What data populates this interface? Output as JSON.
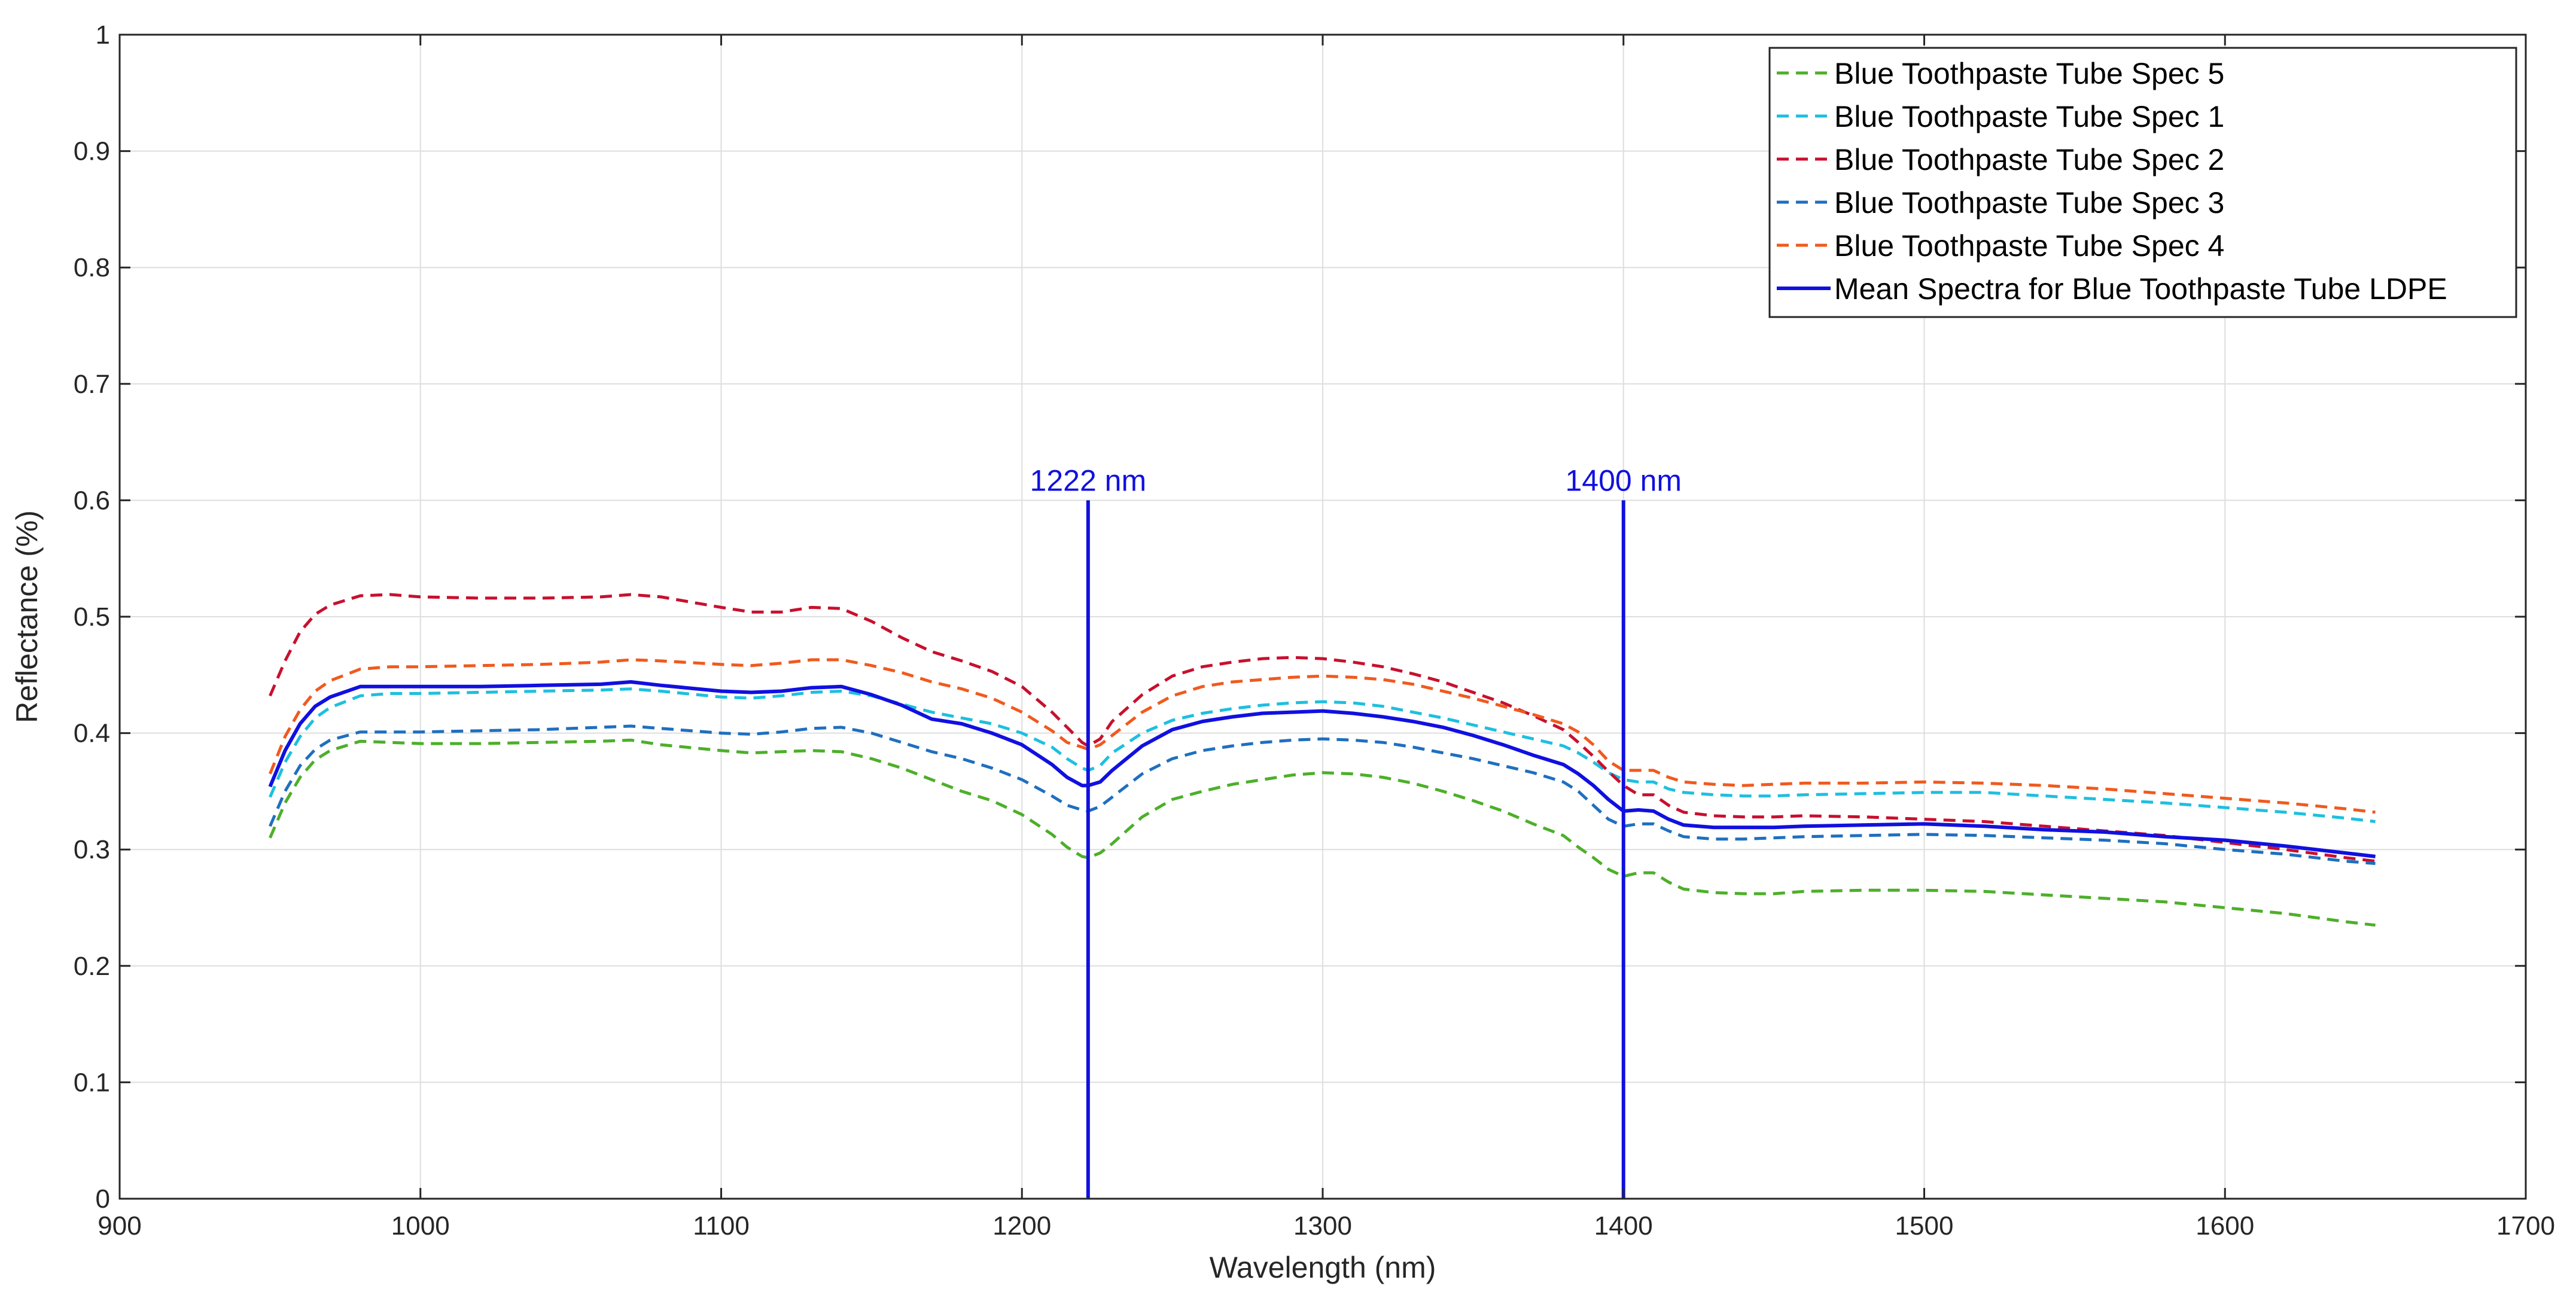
{
  "chart_data": {
    "type": "line",
    "title": "",
    "xlabel": "Wavelength (nm)",
    "ylabel": "Reflectance (%)",
    "xlim": [
      900,
      1700
    ],
    "ylim": [
      0,
      1
    ],
    "grid": true,
    "legend_position": "top-right",
    "x_ticks": [
      "900",
      "1000",
      "1100",
      "1200",
      "1300",
      "1400",
      "1500",
      "1600",
      "1700"
    ],
    "y_ticks": [
      "0",
      "0.1",
      "0.2",
      "0.3",
      "0.4",
      "0.5",
      "0.6",
      "0.7",
      "0.8",
      "0.9",
      "1"
    ],
    "x": [
      950,
      955,
      960,
      965,
      970,
      980,
      990,
      1000,
      1020,
      1040,
      1060,
      1070,
      1080,
      1100,
      1110,
      1120,
      1130,
      1140,
      1150,
      1160,
      1170,
      1180,
      1190,
      1200,
      1210,
      1215,
      1220,
      1222,
      1226,
      1230,
      1240,
      1250,
      1260,
      1270,
      1280,
      1290,
      1300,
      1310,
      1320,
      1330,
      1340,
      1350,
      1360,
      1370,
      1380,
      1385,
      1390,
      1395,
      1400,
      1405,
      1410,
      1415,
      1420,
      1430,
      1440,
      1450,
      1460,
      1480,
      1500,
      1520,
      1540,
      1560,
      1580,
      1600,
      1620,
      1640,
      1650
    ],
    "series": [
      {
        "name": "Blue Toothpaste Tube Spec 5",
        "color": "#4daf2a",
        "dash": "dashed",
        "values": [
          0.31,
          0.34,
          0.362,
          0.377,
          0.385,
          0.393,
          0.392,
          0.391,
          0.391,
          0.392,
          0.393,
          0.394,
          0.39,
          0.385,
          0.383,
          0.384,
          0.385,
          0.384,
          0.378,
          0.37,
          0.36,
          0.35,
          0.342,
          0.33,
          0.313,
          0.302,
          0.294,
          0.293,
          0.297,
          0.305,
          0.328,
          0.343,
          0.35,
          0.356,
          0.36,
          0.364,
          0.366,
          0.365,
          0.362,
          0.357,
          0.35,
          0.342,
          0.333,
          0.322,
          0.312,
          0.302,
          0.293,
          0.283,
          0.277,
          0.28,
          0.28,
          0.272,
          0.266,
          0.263,
          0.262,
          0.262,
          0.264,
          0.265,
          0.265,
          0.264,
          0.261,
          0.258,
          0.255,
          0.25,
          0.245,
          0.238,
          0.235
        ]
      },
      {
        "name": "Blue Toothpaste Tube Spec 1",
        "color": "#1ebfdf",
        "dash": "dashed",
        "values": [
          0.345,
          0.375,
          0.397,
          0.413,
          0.422,
          0.432,
          0.434,
          0.434,
          0.435,
          0.436,
          0.437,
          0.438,
          0.436,
          0.431,
          0.43,
          0.432,
          0.435,
          0.436,
          0.432,
          0.425,
          0.418,
          0.413,
          0.408,
          0.4,
          0.388,
          0.378,
          0.37,
          0.368,
          0.372,
          0.383,
          0.4,
          0.411,
          0.417,
          0.421,
          0.424,
          0.426,
          0.427,
          0.426,
          0.423,
          0.418,
          0.413,
          0.407,
          0.401,
          0.395,
          0.389,
          0.383,
          0.375,
          0.366,
          0.36,
          0.358,
          0.358,
          0.352,
          0.349,
          0.347,
          0.346,
          0.346,
          0.347,
          0.348,
          0.349,
          0.349,
          0.346,
          0.343,
          0.34,
          0.336,
          0.332,
          0.327,
          0.324
        ]
      },
      {
        "name": "Blue Toothpaste Tube Spec 2",
        "color": "#c8102e",
        "dash": "dashed",
        "values": [
          0.432,
          0.462,
          0.487,
          0.502,
          0.51,
          0.518,
          0.519,
          0.517,
          0.516,
          0.516,
          0.517,
          0.519,
          0.517,
          0.508,
          0.504,
          0.504,
          0.508,
          0.507,
          0.496,
          0.482,
          0.47,
          0.462,
          0.453,
          0.44,
          0.418,
          0.405,
          0.392,
          0.389,
          0.395,
          0.41,
          0.433,
          0.449,
          0.457,
          0.461,
          0.464,
          0.465,
          0.464,
          0.461,
          0.457,
          0.451,
          0.444,
          0.435,
          0.426,
          0.415,
          0.403,
          0.392,
          0.38,
          0.367,
          0.355,
          0.347,
          0.347,
          0.338,
          0.332,
          0.329,
          0.328,
          0.328,
          0.329,
          0.328,
          0.326,
          0.324,
          0.32,
          0.316,
          0.312,
          0.306,
          0.3,
          0.293,
          0.29
        ]
      },
      {
        "name": "Blue Toothpaste Tube Spec 3",
        "color": "#1f6fbf",
        "dash": "dashed",
        "values": [
          0.32,
          0.35,
          0.372,
          0.386,
          0.394,
          0.401,
          0.401,
          0.401,
          0.402,
          0.403,
          0.405,
          0.406,
          0.404,
          0.4,
          0.399,
          0.401,
          0.404,
          0.405,
          0.4,
          0.392,
          0.384,
          0.378,
          0.37,
          0.36,
          0.346,
          0.338,
          0.334,
          0.333,
          0.337,
          0.345,
          0.365,
          0.378,
          0.385,
          0.389,
          0.392,
          0.394,
          0.395,
          0.394,
          0.392,
          0.388,
          0.383,
          0.378,
          0.372,
          0.366,
          0.358,
          0.35,
          0.338,
          0.326,
          0.32,
          0.322,
          0.322,
          0.316,
          0.311,
          0.309,
          0.309,
          0.31,
          0.311,
          0.312,
          0.313,
          0.312,
          0.31,
          0.308,
          0.305,
          0.3,
          0.296,
          0.29,
          0.288
        ]
      },
      {
        "name": "Blue Toothpaste Tube Spec 4",
        "color": "#f05a1e",
        "dash": "dashed",
        "values": [
          0.365,
          0.397,
          0.42,
          0.436,
          0.445,
          0.455,
          0.457,
          0.457,
          0.458,
          0.459,
          0.461,
          0.463,
          0.462,
          0.459,
          0.458,
          0.46,
          0.463,
          0.463,
          0.458,
          0.452,
          0.444,
          0.438,
          0.43,
          0.418,
          0.402,
          0.392,
          0.388,
          0.386,
          0.39,
          0.398,
          0.418,
          0.432,
          0.44,
          0.444,
          0.446,
          0.448,
          0.449,
          0.448,
          0.446,
          0.442,
          0.436,
          0.43,
          0.423,
          0.416,
          0.408,
          0.401,
          0.39,
          0.376,
          0.368,
          0.368,
          0.368,
          0.362,
          0.358,
          0.356,
          0.355,
          0.356,
          0.357,
          0.357,
          0.358,
          0.357,
          0.355,
          0.352,
          0.348,
          0.344,
          0.34,
          0.335,
          0.332
        ]
      },
      {
        "name": "Mean Spectra for Blue Toothpaste Tube LDPE",
        "color": "#1010e0",
        "dash": "solid",
        "values": [
          0.354,
          0.385,
          0.408,
          0.423,
          0.431,
          0.44,
          0.44,
          0.44,
          0.44,
          0.441,
          0.442,
          0.444,
          0.441,
          0.436,
          0.435,
          0.436,
          0.439,
          0.44,
          0.433,
          0.424,
          0.412,
          0.408,
          0.4,
          0.39,
          0.373,
          0.362,
          0.355,
          0.355,
          0.358,
          0.368,
          0.389,
          0.403,
          0.41,
          0.414,
          0.417,
          0.418,
          0.419,
          0.417,
          0.414,
          0.41,
          0.405,
          0.398,
          0.39,
          0.381,
          0.373,
          0.365,
          0.355,
          0.343,
          0.333,
          0.334,
          0.333,
          0.326,
          0.321,
          0.319,
          0.319,
          0.319,
          0.32,
          0.321,
          0.322,
          0.32,
          0.317,
          0.315,
          0.311,
          0.308,
          0.303,
          0.297,
          0.294
        ]
      }
    ],
    "vlines": [
      {
        "x": 1222,
        "y_top": 0.6,
        "label": "1222 nm",
        "color": "#1010e0"
      },
      {
        "x": 1400,
        "y_top": 0.6,
        "label": "1400 nm",
        "color": "#1010e0"
      }
    ]
  }
}
